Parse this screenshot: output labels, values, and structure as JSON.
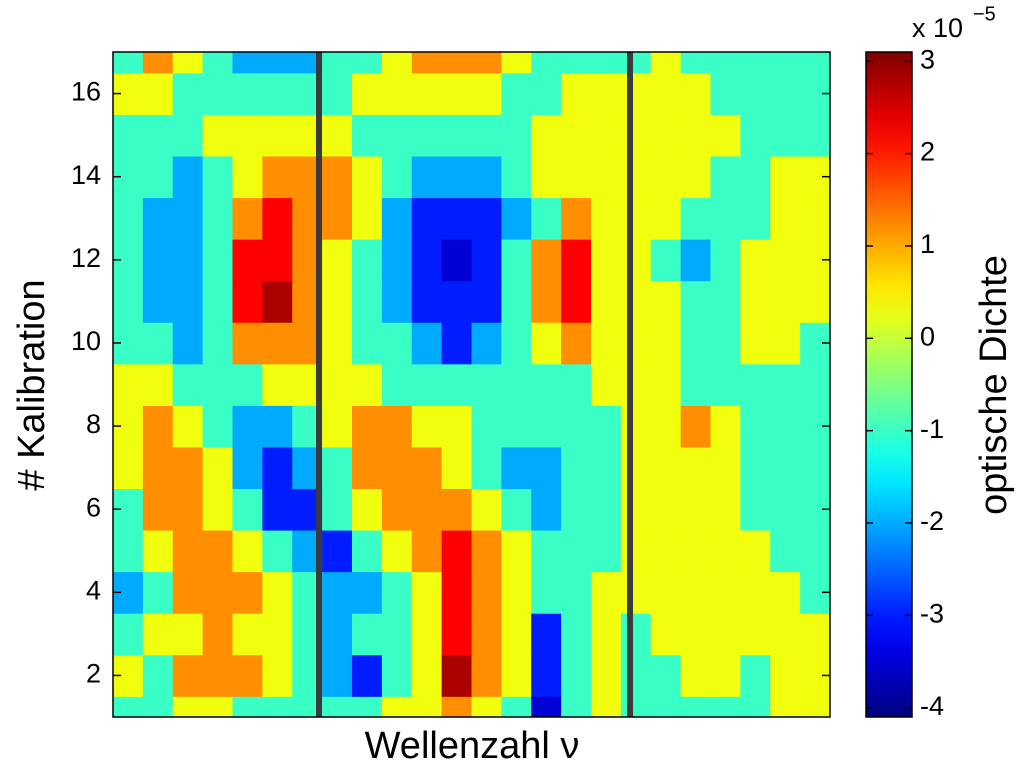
{
  "chart_data": {
    "type": "contourf",
    "xlabel": "Wellenzahl ν",
    "ylabel": "# Kalibration",
    "colorbar_label": "optische Dichte",
    "colorbar_scale": {
      "base": "x 10",
      "exponent": "−5"
    },
    "colormap": "jet",
    "clim": [
      -4.1,
      3.1
    ],
    "colorbar_ticks": [
      -4,
      -3,
      -2,
      -1,
      0,
      1,
      2,
      3
    ],
    "ylim": [
      1,
      17
    ],
    "yticks": [
      2,
      4,
      6,
      8,
      10,
      12,
      14,
      16
    ],
    "y": [
      1,
      2,
      3,
      4,
      5,
      6,
      7,
      8,
      9,
      10,
      11,
      12,
      13,
      14,
      15,
      16,
      17
    ],
    "z": [
      [
        -1,
        -1,
        0.3,
        0.3,
        -1,
        -1,
        -1,
        -1,
        -1,
        0.3,
        0.3,
        1.2,
        0.3,
        -1,
        -3.5,
        -1,
        0.3,
        -1,
        -1,
        -1,
        -1,
        -1,
        0.3,
        0.3
      ],
      [
        0.3,
        -1,
        1.2,
        1.2,
        1.2,
        0.3,
        -1,
        -2,
        -3,
        -1,
        0.3,
        2.8,
        1.2,
        0.3,
        -3,
        -1,
        0.3,
        -1,
        -1,
        0.3,
        0.3,
        -1,
        0.3,
        0.3
      ],
      [
        -1,
        0.3,
        0.3,
        1.2,
        0.3,
        0.3,
        -1,
        -2,
        -1,
        -1,
        0.3,
        2.2,
        1.2,
        0.3,
        -3,
        -1,
        0.3,
        -1,
        0.3,
        0.3,
        0.3,
        0.3,
        0.3,
        0.3
      ],
      [
        -2,
        -1,
        1.2,
        1.2,
        1.2,
        0.3,
        -1,
        -2,
        -2,
        -1,
        0.3,
        2.2,
        1.2,
        0.3,
        -1,
        -1,
        0.3,
        0.3,
        0.3,
        0.3,
        0.3,
        0.3,
        0.3,
        -1
      ],
      [
        -1,
        0.3,
        1.2,
        1.2,
        0.3,
        -1,
        -2,
        -3,
        -1,
        0.3,
        1.2,
        2.2,
        1.2,
        0.3,
        -1,
        -1,
        -1,
        0.3,
        0.3,
        0.3,
        0.3,
        0.3,
        -1,
        -1
      ],
      [
        -1,
        1.2,
        1.2,
        0.3,
        -1,
        -3,
        -3,
        -1,
        0.3,
        1.2,
        1.2,
        1.2,
        0.3,
        -1,
        -2,
        -1,
        -1,
        0.3,
        0.3,
        0.3,
        0.3,
        -1,
        -1,
        -1
      ],
      [
        0.3,
        1.2,
        1.2,
        0.3,
        -2,
        -3,
        -2,
        -1,
        1.2,
        1.2,
        1.2,
        0.3,
        -1,
        -2,
        -2,
        -1,
        -1,
        0.3,
        0.3,
        0.3,
        0.3,
        -1,
        -1,
        -1
      ],
      [
        0.3,
        1.2,
        0.3,
        -1,
        -2,
        -2,
        -1,
        0.3,
        1.2,
        1.2,
        0.3,
        0.3,
        -1,
        -1,
        -1,
        -1,
        -1,
        0.3,
        0.3,
        1.2,
        0.3,
        -1,
        -1,
        -1
      ],
      [
        0.3,
        0.3,
        -1,
        -1,
        -1,
        0.3,
        0.3,
        0.3,
        0.3,
        -1,
        -1,
        -1,
        -1,
        -1,
        -1,
        -1,
        0.3,
        0.3,
        0.3,
        -1,
        -1,
        -1,
        -1,
        -1
      ],
      [
        -1,
        -1,
        -2,
        -1,
        1.2,
        1.2,
        1.2,
        0.3,
        -1,
        -1,
        -2,
        -3,
        -2,
        -1,
        0.3,
        1.2,
        0.3,
        0.3,
        0.3,
        -1,
        -1,
        0.3,
        0.3,
        -1
      ],
      [
        -1,
        -2,
        -2,
        -1,
        2.2,
        2.8,
        1.2,
        0.3,
        -1,
        -2,
        -3,
        -3,
        -3,
        -1,
        1.2,
        2.2,
        0.3,
        0.3,
        0.3,
        -1,
        -1,
        0.3,
        0.3,
        0.3
      ],
      [
        -1,
        -2,
        -2,
        -1,
        2.2,
        2.2,
        1.2,
        0.3,
        -1,
        -2,
        -3,
        -3.5,
        -3,
        -1,
        1.2,
        2.2,
        0.3,
        0.3,
        -1,
        -2,
        -1,
        0.3,
        0.3,
        0.3
      ],
      [
        -1,
        -2,
        -2,
        -1,
        1.2,
        2.2,
        1.2,
        1.2,
        0.3,
        -2,
        -3,
        -3,
        -3,
        -2,
        -1,
        1.2,
        0.3,
        0.3,
        0.3,
        -1,
        -1,
        -1,
        0.3,
        0.3
      ],
      [
        -1,
        -1,
        -2,
        -1,
        0.3,
        1.2,
        1.2,
        1.2,
        0.3,
        -1,
        -2,
        -2,
        -2,
        -1,
        0.3,
        0.3,
        0.3,
        0.3,
        0.3,
        0.3,
        -1,
        -1,
        0.3,
        0.3
      ],
      [
        -1,
        -1,
        -1,
        0.3,
        0.3,
        0.3,
        0.3,
        0.3,
        -1,
        -1,
        -1,
        -1,
        -1,
        -1,
        0.3,
        0.3,
        0.3,
        0.3,
        0.3,
        0.3,
        0.3,
        -1,
        -1,
        -1
      ],
      [
        0.3,
        0.3,
        -1,
        -1,
        -1,
        -1,
        -1,
        -1,
        0.3,
        0.3,
        0.3,
        0.3,
        0.3,
        -1,
        -1,
        0.3,
        0.3,
        0.3,
        0.3,
        0.3,
        -1,
        -1,
        -1,
        -1
      ],
      [
        -1,
        1.2,
        0.3,
        -1,
        -2,
        -2,
        -2,
        -1,
        -1,
        0.3,
        1.2,
        1.2,
        1.2,
        0.3,
        -1,
        -1,
        -1,
        -1,
        0.3,
        -1,
        -1,
        -1,
        -1,
        -1
      ]
    ]
  }
}
